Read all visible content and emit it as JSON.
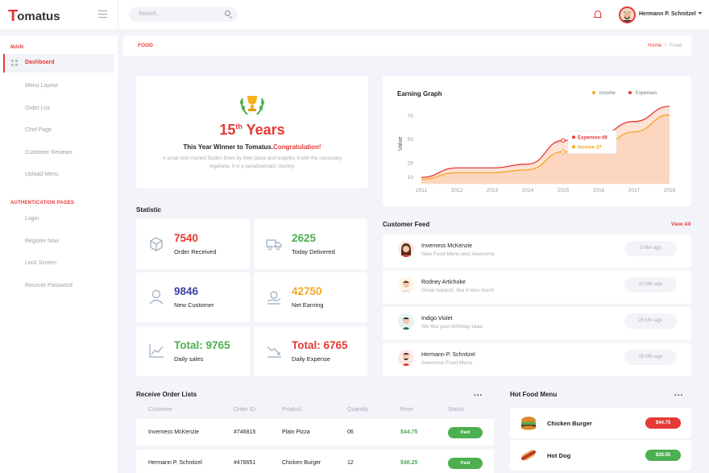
{
  "app": {
    "brand_first": "T",
    "brand_rest": "omatus"
  },
  "search": {
    "placeholder": "Search..."
  },
  "user": {
    "name": "Hermann P. Schnitzel"
  },
  "sidebar": {
    "main_heading": "MAIN",
    "main_items": [
      "Dashboard",
      "Menu Layout",
      "Order List",
      "Chef Page",
      "Customer Reviews",
      "Upload Menu"
    ],
    "auth_heading": "AUTHENTICATION PAGES",
    "auth_items": [
      "Login",
      "Register Now",
      "Lock Screen",
      "Recover Password"
    ]
  },
  "page": {
    "title": "FOOD",
    "breadcrumb_home": "Home",
    "breadcrumb_sep": "/",
    "breadcrumb_current": "Food"
  },
  "award": {
    "number": "15",
    "suffix": "th",
    "years": "Years",
    "winner_text": "This Year Winner to Tomatus.",
    "winner_highlight": "Congratulation!",
    "description": "A small river named Duden flows by their place and supplies it with the necessary regelialia. It is a paradisematic country."
  },
  "earning": {
    "title": "Earning Graph",
    "legend_income": "Income",
    "legend_expenses": "Expenses",
    "tooltip_expenses": "Expenses:49",
    "tooltip_income": "Income:37"
  },
  "chart_data": {
    "type": "area",
    "title": "Earning Graph",
    "xlabel": "",
    "ylabel": "Value",
    "x": [
      "2011",
      "2012",
      "2013",
      "2014",
      "2015",
      "2016",
      "2017",
      "2018"
    ],
    "yticks": [
      10,
      25,
      50,
      75
    ],
    "ylim": [
      5,
      85
    ],
    "series": [
      {
        "name": "Income",
        "color": "#f5a623",
        "values": [
          8,
          15,
          15,
          18,
          37,
          42,
          58,
          76
        ]
      },
      {
        "name": "Expenses",
        "color": "#e53935",
        "values": [
          10,
          20,
          20,
          24,
          49,
          55,
          69,
          85
        ]
      }
    ]
  },
  "statistic": {
    "title": "Statistic",
    "cards": [
      {
        "value": "7540",
        "label": "Order Received",
        "color": "#e53935",
        "icon": "box-icon"
      },
      {
        "value": "2625",
        "label": "Today Delivered",
        "color": "#4caf50",
        "icon": "truck-icon"
      },
      {
        "value": "9846",
        "label": "New Customer",
        "color": "#3f3fa8",
        "icon": "user-icon"
      },
      {
        "value": "42750",
        "label": "Net Earning",
        "color": "#f5a623",
        "icon": "money-icon"
      },
      {
        "value": "Total: 9765",
        "label": "Daily sales",
        "color": "#4caf50",
        "icon": "chart-up-icon"
      },
      {
        "value": "Total: 6765",
        "label": "Daily Expense",
        "color": "#e53935",
        "icon": "chart-down-icon"
      }
    ]
  },
  "feed": {
    "title": "Customer Feed",
    "view_all": "View All",
    "items": [
      {
        "name": "Inverness McKenzie",
        "message": "New Food Menu wes Awesome",
        "time": "5 Min ago"
      },
      {
        "name": "Rodney Artichoke",
        "message": "Great support, like it veru much",
        "time": "10 Min ago"
      },
      {
        "name": "Indigo Violet",
        "message": "We like your birthday ckae",
        "time": "25 Min ago"
      },
      {
        "name": "Hermann P. Schnitzel",
        "message": "Awesome Food Menu",
        "time": "28 Min ago"
      }
    ]
  },
  "orders": {
    "title": "Receive Order Lists",
    "more": "...",
    "columns": [
      "Customer",
      "Order ID",
      "Product",
      "Quantity",
      "Price",
      "Status"
    ],
    "rows": [
      {
        "customer": "Inverness McKenzie",
        "order_id": "#746815",
        "product": "Plain Pizza",
        "quantity": "06",
        "price": "$44.75",
        "status": "Paid"
      },
      {
        "customer": "Hermann P. Schnitzel",
        "order_id": "#478651",
        "product": "Chicken Burger",
        "quantity": "12",
        "price": "$48.25",
        "status": "Paid"
      }
    ]
  },
  "hot": {
    "title": "Hot Food Menu",
    "more": "...",
    "items": [
      {
        "name": "Chicken Burger",
        "price": "$44.75",
        "color": "#e53935"
      },
      {
        "name": "Hot Dog",
        "price": "$28.55",
        "color": "#4caf50"
      }
    ]
  }
}
